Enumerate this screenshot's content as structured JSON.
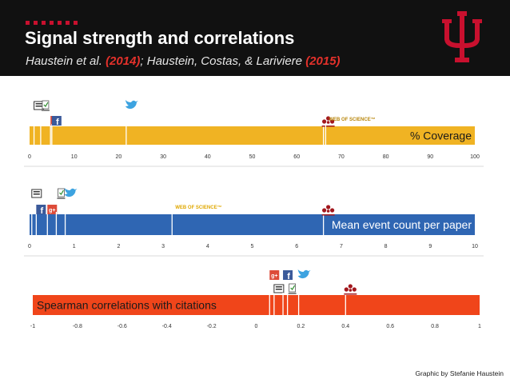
{
  "header": {
    "title": "Signal strength and correlations",
    "subtitle_part1": "Haustein et al. ",
    "year1": "(2014)",
    "subtitle_part2": "; Haustein, Costas, & Lariviere ",
    "year2": "(2015)"
  },
  "credit": "Graphic by Stefanie Haustein",
  "colors": {
    "header_bg": "#111111",
    "accent_red": "#c8102e",
    "coverage_bar": "#f0b323",
    "mean_bar": "#2f66b3",
    "corr_bar": "#f0451a"
  },
  "chart_data": [
    {
      "type": "bar",
      "title": "% Coverage",
      "xlim": [
        0,
        100
      ],
      "ticks": [
        "0",
        "10",
        "20",
        "30",
        "40",
        "50",
        "60",
        "70",
        "80",
        "90",
        "100"
      ],
      "markers": [
        {
          "name": "blogs",
          "icon": "blog-icon",
          "value": 1.0
        },
        {
          "name": "google-plus",
          "icon": "google-plus-icon",
          "value": 4.7
        },
        {
          "name": "news",
          "icon": "news-icon",
          "value": 2.5
        },
        {
          "name": "facebook",
          "icon": "facebook-icon",
          "value": 5.0
        },
        {
          "name": "twitter",
          "icon": "twitter-icon",
          "value": 21.7
        },
        {
          "name": "mendeley",
          "icon": "mendeley-icon",
          "value": 66.0
        }
      ],
      "labels": [
        {
          "text": "WEB OF SCIENCE™",
          "value": 66.5
        }
      ]
    },
    {
      "type": "bar",
      "title": "Mean event count per paper",
      "xlim": [
        0,
        10
      ],
      "ticks": [
        "0",
        "1",
        "2",
        "3",
        "4",
        "5",
        "6",
        "7",
        "8",
        "9",
        "10"
      ],
      "markers": [
        {
          "name": "blogs",
          "icon": "blog-icon",
          "value": 0.05
        },
        {
          "name": "google-plus",
          "icon": "google-plus-icon",
          "value": 0.4
        },
        {
          "name": "news",
          "icon": "news-icon",
          "value": 0.6
        },
        {
          "name": "facebook",
          "icon": "facebook-icon",
          "value": 0.15
        },
        {
          "name": "twitter",
          "icon": "twitter-icon",
          "value": 0.8
        },
        {
          "name": "mendeley",
          "icon": "mendeley-icon",
          "value": 6.6
        }
      ],
      "labels": [
        {
          "text": "WEB OF SCIENCE™",
          "value": 3.2
        }
      ]
    },
    {
      "type": "bar",
      "title": "Spearman correlations with citations",
      "xlim": [
        -1,
        1
      ],
      "ticks": [
        "-1",
        "-0.8",
        "-0.6",
        "-0.4",
        "-0.2",
        "0",
        "0.2",
        "0.4",
        "0.6",
        "0.8",
        "1"
      ],
      "markers": [
        {
          "name": "google-plus",
          "icon": "google-plus-icon",
          "value": 0.06
        },
        {
          "name": "blogs",
          "icon": "blog-icon",
          "value": 0.08
        },
        {
          "name": "facebook",
          "icon": "facebook-icon",
          "value": 0.12
        },
        {
          "name": "news",
          "icon": "news-icon",
          "value": 0.14
        },
        {
          "name": "twitter",
          "icon": "twitter-icon",
          "value": 0.19
        },
        {
          "name": "mendeley",
          "icon": "mendeley-icon",
          "value": 0.4
        }
      ],
      "labels": []
    }
  ]
}
